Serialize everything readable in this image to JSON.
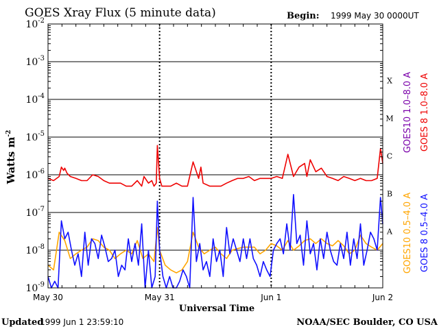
{
  "chart_data": {
    "type": "line",
    "title": "GOES Xray Flux (5 minute data)",
    "begin_label": "Begin:",
    "begin_value": "1999 May 30 0000UT",
    "ylabel": "Watts m",
    "ylabel_sup": "-2",
    "xlabel": "Universal Time",
    "y_scale": "log",
    "ylim": [
      1e-09,
      0.01
    ],
    "y_ticks": [
      {
        "base": "10",
        "exp": "-2",
        "value": 0.01
      },
      {
        "base": "10",
        "exp": "-3",
        "value": 0.001
      },
      {
        "base": "10",
        "exp": "-4",
        "value": 0.0001
      },
      {
        "base": "10",
        "exp": "-5",
        "value": 1e-05
      },
      {
        "base": "10",
        "exp": "-6",
        "value": 1e-06
      },
      {
        "base": "10",
        "exp": "-7",
        "value": 1e-07
      },
      {
        "base": "10",
        "exp": "-8",
        "value": 1e-08
      },
      {
        "base": "10",
        "exp": "-9",
        "value": 1e-09
      }
    ],
    "x_ticks": [
      {
        "label": "May 30",
        "day": 0
      },
      {
        "label": "May 31",
        "day": 1
      },
      {
        "label": "Jun 1",
        "day": 2
      },
      {
        "label": "Jun 2",
        "day": 3
      }
    ],
    "xlim_days": [
      0,
      3
    ],
    "flare_classes": [
      {
        "label": "X",
        "value": 0.000316
      },
      {
        "label": "M",
        "value": 3.16e-05
      },
      {
        "label": "C",
        "value": 3.16e-06
      },
      {
        "label": "B",
        "value": 3.16e-07
      },
      {
        "label": "A",
        "value": 3.16e-08
      }
    ],
    "grid": true,
    "legend": [
      {
        "name": "GOES10 1.0–8.0 A",
        "color": "#7a00aa"
      },
      {
        "name": "GOES 8 1.0–8.0 A",
        "color": "#ee0000"
      },
      {
        "name": "GOES10 0.5–4.0 A",
        "color": "#ffa500"
      },
      {
        "name": "GOES 8 0.5–4.0 A",
        "color": "#1010ff"
      }
    ],
    "series": [
      {
        "name": "GOES 8 1.0–8.0 A",
        "color": "#ee0000",
        "x": [
          0.0,
          0.05,
          0.1,
          0.12,
          0.14,
          0.15,
          0.17,
          0.2,
          0.25,
          0.3,
          0.35,
          0.4,
          0.45,
          0.5,
          0.55,
          0.6,
          0.65,
          0.7,
          0.75,
          0.8,
          0.84,
          0.86,
          0.9,
          0.93,
          0.95,
          0.97,
          0.98,
          1.0,
          1.02,
          1.05,
          1.1,
          1.15,
          1.2,
          1.25,
          1.3,
          1.35,
          1.37,
          1.39,
          1.45,
          1.5,
          1.55,
          1.6,
          1.65,
          1.7,
          1.75,
          1.8,
          1.85,
          1.9,
          1.95,
          2.0,
          2.05,
          2.1,
          2.15,
          2.2,
          2.25,
          2.3,
          2.32,
          2.35,
          2.4,
          2.45,
          2.5,
          2.55,
          2.6,
          2.65,
          2.7,
          2.75,
          2.8,
          2.85,
          2.9,
          2.95,
          2.98,
          3.0
        ],
        "y": [
          8e-07,
          7e-07,
          9e-07,
          1.6e-06,
          1.3e-06,
          1.5e-06,
          1.1e-06,
          9e-07,
          8e-07,
          7e-07,
          7e-07,
          1e-06,
          9e-07,
          7e-07,
          6e-07,
          6e-07,
          6e-07,
          5e-07,
          5e-07,
          7e-07,
          5e-07,
          9e-07,
          6e-07,
          7e-07,
          5e-07,
          6e-07,
          6e-06,
          8e-07,
          5e-07,
          5e-07,
          5e-07,
          6e-07,
          5e-07,
          5e-07,
          2.2e-06,
          8e-07,
          1.6e-06,
          6e-07,
          5e-07,
          5e-07,
          5e-07,
          6e-07,
          7e-07,
          8e-07,
          8e-07,
          9e-07,
          7e-07,
          8e-07,
          8e-07,
          8e-07,
          9e-07,
          8e-07,
          3.5e-06,
          9e-07,
          1.6e-06,
          2e-06,
          9e-07,
          2.5e-06,
          1.2e-06,
          1.5e-06,
          9e-07,
          8e-07,
          7e-07,
          9e-07,
          8e-07,
          7e-07,
          8e-07,
          7e-07,
          7e-07,
          8e-07,
          5e-06,
          2e-06
        ]
      },
      {
        "name": "GOES10 0.5–4.0 A",
        "color": "#ffa500",
        "x": [
          0.0,
          0.05,
          0.1,
          0.15,
          0.2,
          0.25,
          0.3,
          0.35,
          0.4,
          0.45,
          0.5,
          0.55,
          0.6,
          0.65,
          0.7,
          0.75,
          0.8,
          0.85,
          0.9,
          0.95,
          0.98,
          1.0,
          1.05,
          1.1,
          1.15,
          1.2,
          1.25,
          1.3,
          1.35,
          1.4,
          1.45,
          1.5,
          1.55,
          1.6,
          1.65,
          1.7,
          1.75,
          1.8,
          1.85,
          1.9,
          1.95,
          2.0,
          2.05,
          2.1,
          2.15,
          2.2,
          2.25,
          2.3,
          2.35,
          2.4,
          2.45,
          2.5,
          2.55,
          2.6,
          2.65,
          2.7,
          2.75,
          2.8,
          2.85,
          2.9,
          2.95,
          3.0
        ],
        "y": [
          4e-09,
          3e-09,
          3e-08,
          1.8e-08,
          6e-09,
          8e-09,
          1e-08,
          1.2e-08,
          2e-08,
          1.8e-08,
          1.2e-08,
          1e-08,
          6e-09,
          8e-09,
          1e-08,
          8e-09,
          1.8e-08,
          6e-09,
          8e-09,
          5e-09,
          4e-08,
          1e-08,
          4e-09,
          3e-09,
          2.5e-09,
          3e-09,
          5e-09,
          3e-08,
          1.2e-08,
          8e-09,
          1e-08,
          1.2e-08,
          8e-09,
          6e-09,
          1e-08,
          1.1e-08,
          1.2e-08,
          1.2e-08,
          1.2e-08,
          8e-09,
          1e-08,
          1.5e-08,
          1.3e-08,
          1e-08,
          1.8e-08,
          1e-08,
          1.3e-08,
          1.8e-08,
          2e-08,
          1.5e-08,
          2e-08,
          1.5e-08,
          1.3e-08,
          1.8e-08,
          1.3e-08,
          8e-09,
          1e-08,
          2.5e-08,
          1.5e-08,
          1.2e-08,
          1e-08,
          1.5e-08
        ]
      },
      {
        "name": "GOES 8 0.5–4.0 A",
        "color": "#1010ff",
        "x": [
          0.0,
          0.03,
          0.06,
          0.09,
          0.12,
          0.15,
          0.18,
          0.21,
          0.24,
          0.27,
          0.3,
          0.33,
          0.36,
          0.39,
          0.42,
          0.45,
          0.48,
          0.51,
          0.54,
          0.57,
          0.6,
          0.63,
          0.66,
          0.69,
          0.72,
          0.75,
          0.78,
          0.81,
          0.84,
          0.87,
          0.9,
          0.93,
          0.96,
          0.98,
          1.0,
          1.03,
          1.06,
          1.09,
          1.12,
          1.15,
          1.18,
          1.21,
          1.24,
          1.27,
          1.3,
          1.33,
          1.36,
          1.39,
          1.42,
          1.45,
          1.48,
          1.51,
          1.54,
          1.57,
          1.6,
          1.63,
          1.66,
          1.69,
          1.72,
          1.75,
          1.78,
          1.81,
          1.84,
          1.87,
          1.9,
          1.93,
          1.96,
          1.99,
          2.02,
          2.05,
          2.08,
          2.11,
          2.14,
          2.17,
          2.2,
          2.23,
          2.26,
          2.29,
          2.32,
          2.35,
          2.38,
          2.41,
          2.44,
          2.47,
          2.5,
          2.53,
          2.56,
          2.59,
          2.62,
          2.65,
          2.68,
          2.71,
          2.74,
          2.77,
          2.8,
          2.83,
          2.86,
          2.89,
          2.92,
          2.95,
          2.98,
          3.0
        ],
        "y": [
          2e-09,
          1e-09,
          1.5e-09,
          1e-09,
          6e-08,
          2e-08,
          3e-08,
          1e-08,
          4e-09,
          8e-09,
          2e-09,
          3e-08,
          4e-09,
          2e-08,
          1.5e-08,
          6e-09,
          2.5e-08,
          1.2e-08,
          5e-09,
          6e-09,
          1e-08,
          2e-09,
          4e-09,
          3e-09,
          2e-08,
          5e-09,
          1.5e-08,
          4e-09,
          5e-08,
          1e-09,
          1e-08,
          1e-09,
          2e-09,
          2e-07,
          1e-08,
          2e-09,
          1e-09,
          2e-09,
          1e-09,
          1e-09,
          1.5e-09,
          3e-09,
          2e-09,
          1e-09,
          2.5e-07,
          5e-09,
          1.5e-08,
          3e-09,
          5e-09,
          2e-09,
          2e-08,
          5e-09,
          1e-08,
          2e-09,
          4e-08,
          8e-09,
          2e-08,
          1e-08,
          5e-09,
          2e-08,
          6e-09,
          2e-08,
          6e-09,
          4e-09,
          2e-09,
          5e-09,
          3e-09,
          2e-09,
          1e-08,
          1.5e-08,
          2e-08,
          8e-09,
          5e-08,
          1e-08,
          3e-07,
          1.5e-08,
          2.5e-08,
          4e-09,
          6e-08,
          8e-09,
          1.5e-08,
          3e-09,
          2e-08,
          6e-09,
          3e-08,
          1e-08,
          5e-09,
          4e-09,
          1.5e-08,
          6e-09,
          3e-08,
          4e-09,
          2e-08,
          6e-09,
          5e-08,
          4e-09,
          1e-08,
          3e-08,
          2e-08,
          1e-08,
          2.5e-07,
          5e-08
        ]
      }
    ]
  },
  "footer": {
    "updated_label": "Updated",
    "updated_value": "1999 Jun  1 23:59:10",
    "credit": "NOAA/SEC Boulder, CO USA"
  }
}
